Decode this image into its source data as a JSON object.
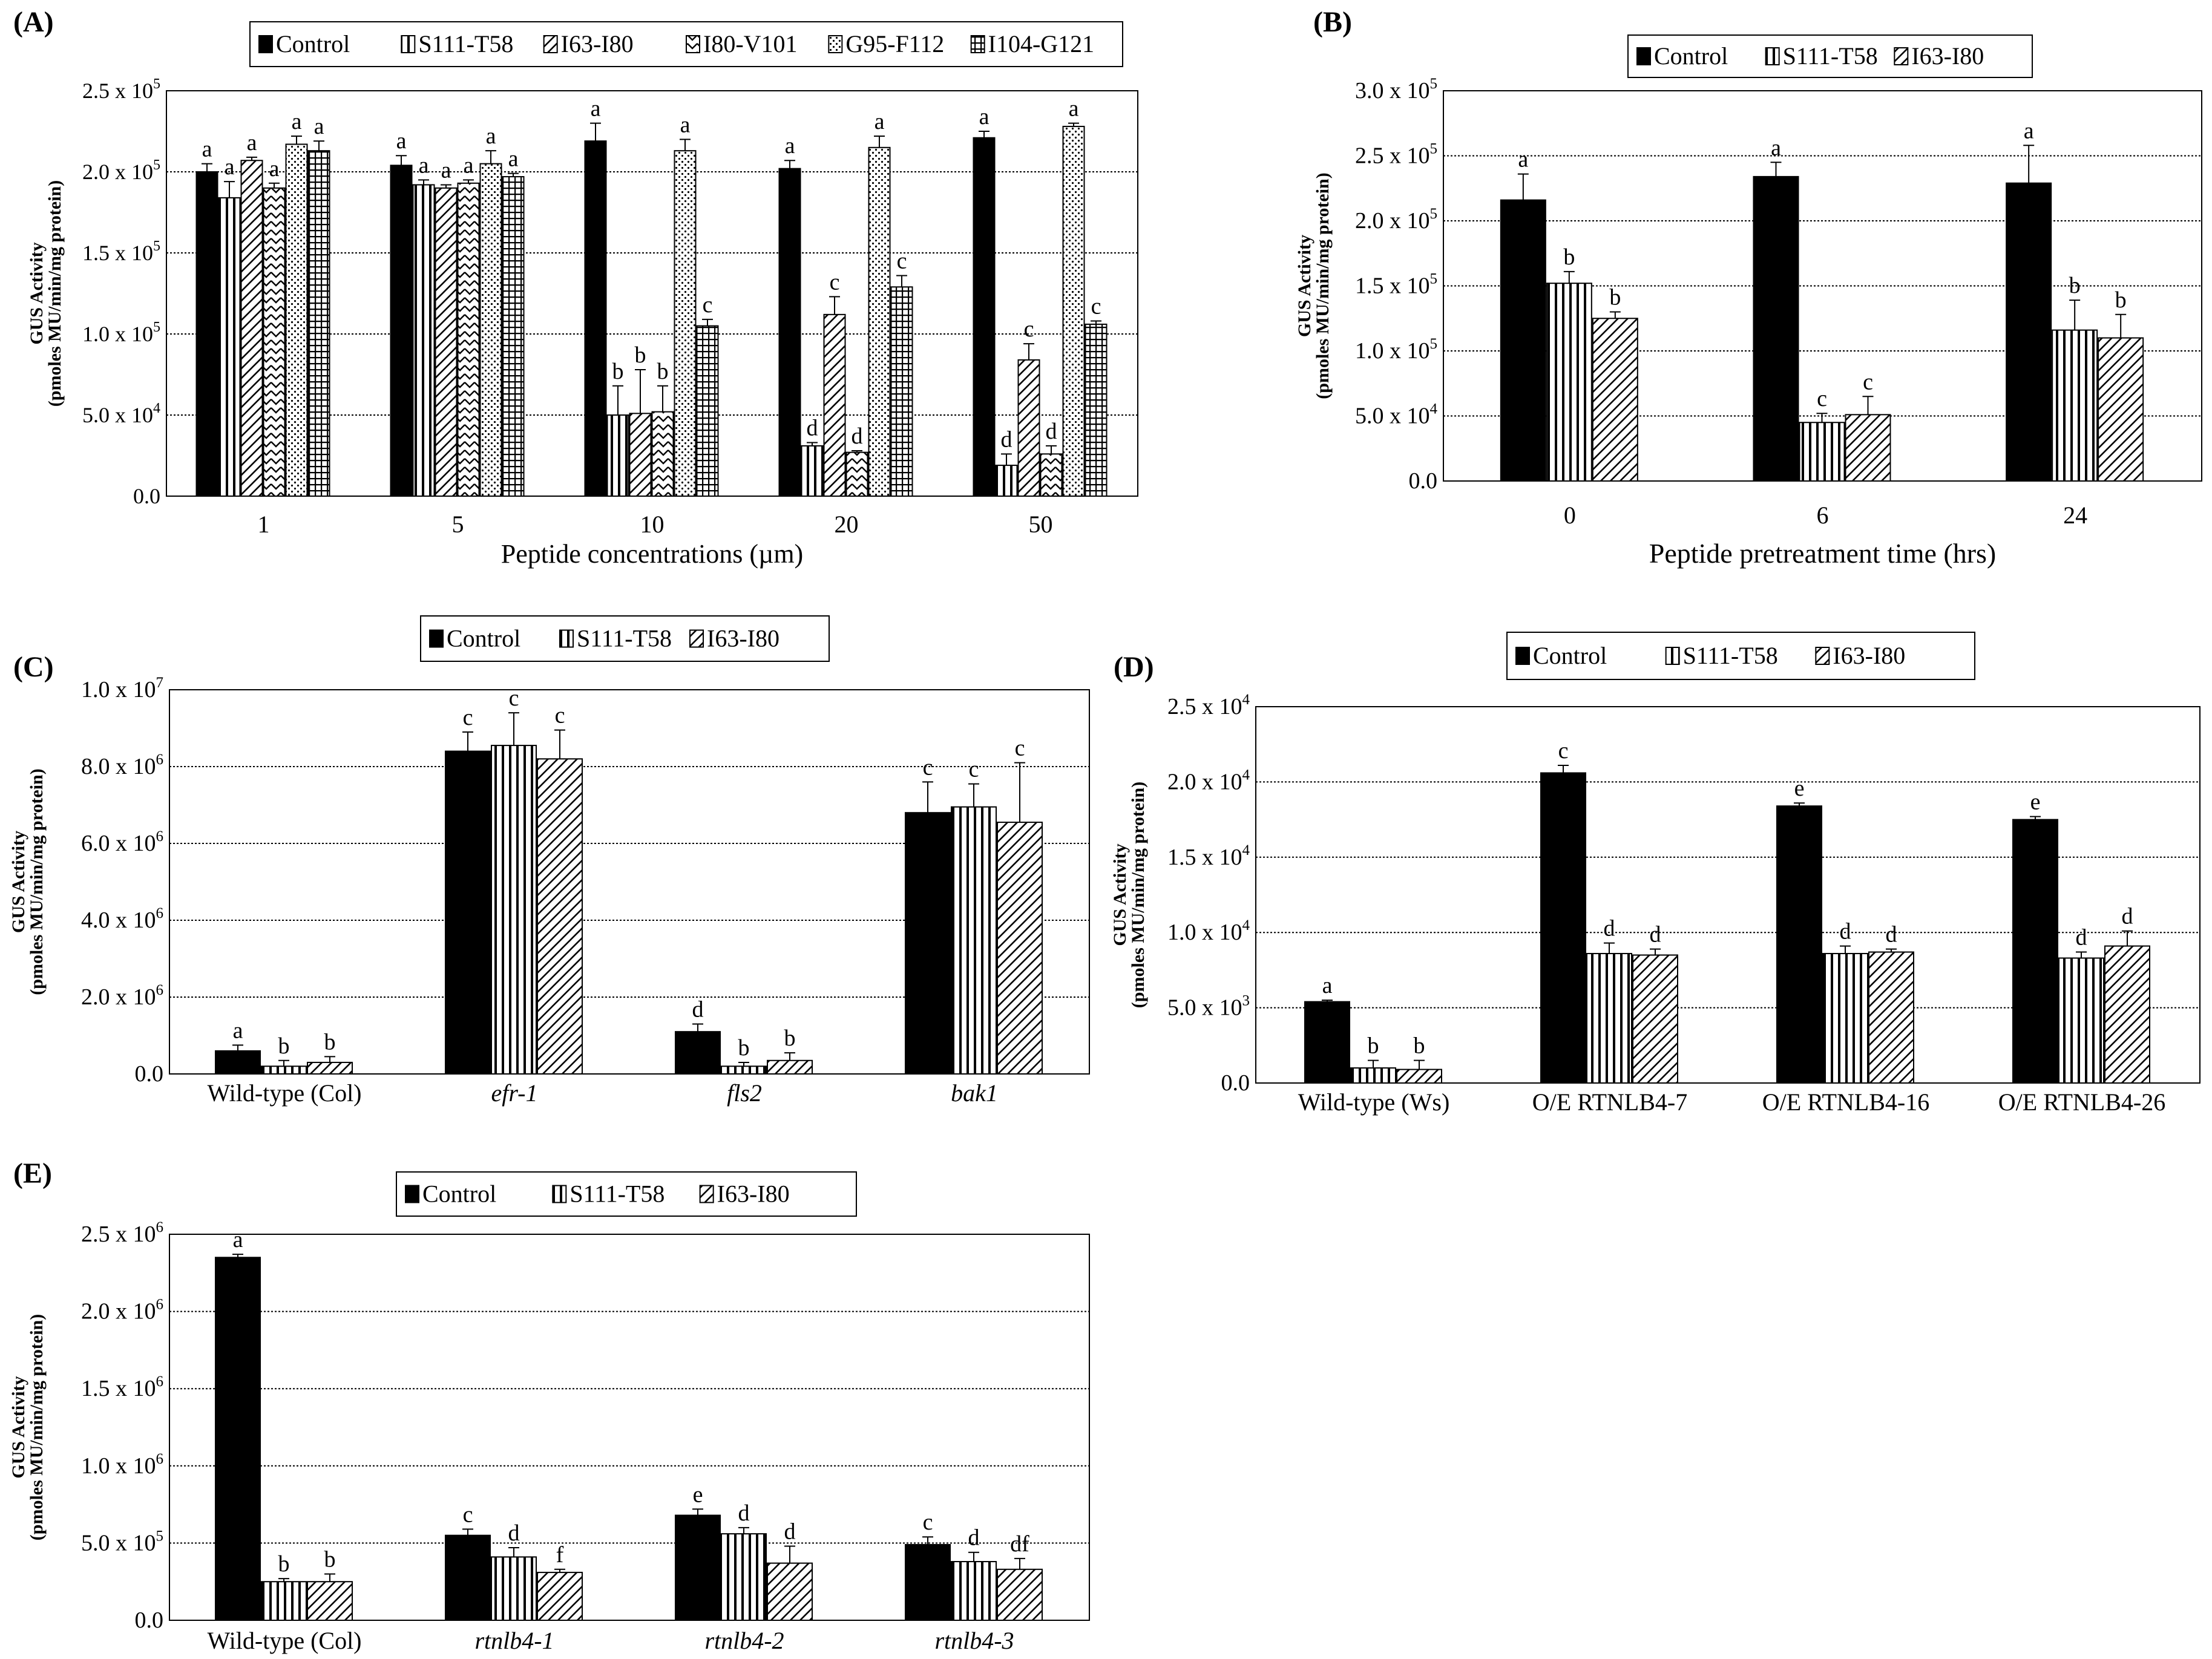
{
  "series_styles": [
    {
      "name": "Control",
      "fill": "solid-black"
    },
    {
      "name": "S111-T58",
      "fill": "vertical-stripes"
    },
    {
      "name": "I63-I80",
      "fill": "diagonal-hatch"
    },
    {
      "name": "I80-V101",
      "fill": "zigzag"
    },
    {
      "name": "G95-F112",
      "fill": "dotted"
    },
    {
      "name": "I104-G121",
      "fill": "grid"
    }
  ],
  "chart_data": [
    {
      "panel": "(A)",
      "type": "bar",
      "ylabel_line1": "GUS Activity",
      "ylabel_line2": "(pmoles MU/min/mg protein)",
      "xlabel": "Peptide concentrations (µm)",
      "ylim": [
        0,
        250000
      ],
      "yticks": [
        {
          "value": 0,
          "mant": "0.0",
          "exp": ""
        },
        {
          "value": 50000,
          "mant": "5.0 x 10",
          "exp": "4"
        },
        {
          "value": 100000,
          "mant": "1.0 x 10",
          "exp": "5"
        },
        {
          "value": 150000,
          "mant": "1.5 x 10",
          "exp": "5"
        },
        {
          "value": 200000,
          "mant": "2.0 x 10",
          "exp": "5"
        },
        {
          "value": 250000,
          "mant": "2.5 x 10",
          "exp": "5"
        }
      ],
      "categories": [
        "1",
        "5",
        "10",
        "20",
        "50"
      ],
      "category_italic": false,
      "series": [
        {
          "name": "Control",
          "values": [
            200000,
            204000,
            219000,
            202000,
            221000
          ],
          "errors": [
            5000,
            6000,
            11000,
            5000,
            4000
          ],
          "letters": [
            "a",
            "a",
            "a",
            "a",
            "a"
          ]
        },
        {
          "name": "S111-T58",
          "values": [
            184000,
            192000,
            50000,
            31000,
            19000
          ],
          "errors": [
            10000,
            3000,
            18000,
            2000,
            7000
          ],
          "letters": [
            "a",
            "a",
            "b",
            "d",
            "d"
          ]
        },
        {
          "name": "I63-I80",
          "values": [
            207000,
            190000,
            51000,
            112000,
            84000
          ],
          "errors": [
            2000,
            2000,
            27000,
            11000,
            10000
          ],
          "letters": [
            "a",
            "a",
            "b",
            "c",
            "c"
          ]
        },
        {
          "name": "I80-V101",
          "values": [
            190000,
            193000,
            52000,
            27000,
            26000
          ],
          "errors": [
            3000,
            2000,
            16000,
            1000,
            5000
          ],
          "letters": [
            "a",
            "a",
            "b",
            "d",
            "d"
          ]
        },
        {
          "name": "G95-F112",
          "values": [
            217000,
            205000,
            213000,
            215000,
            228000
          ],
          "errors": [
            5000,
            8000,
            7000,
            7000,
            2000
          ],
          "letters": [
            "a",
            "a",
            "a",
            "a",
            "a"
          ]
        },
        {
          "name": "I104-G121",
          "values": [
            213000,
            197000,
            105000,
            129000,
            106000
          ],
          "errors": [
            6000,
            2000,
            4000,
            7000,
            2000
          ],
          "letters": [
            "a",
            "a",
            "c",
            "c",
            "c"
          ]
        }
      ]
    },
    {
      "panel": "(B)",
      "type": "bar",
      "ylabel_line1": "GUS Activity",
      "ylabel_line2": "(pmoles MU/min/mg protein)",
      "xlabel": "Peptide pretreatment time (hrs)",
      "ylim": [
        0,
        300000
      ],
      "yticks": [
        {
          "value": 0,
          "mant": "0.0",
          "exp": ""
        },
        {
          "value": 50000,
          "mant": "5.0 x 10",
          "exp": "4"
        },
        {
          "value": 100000,
          "mant": "1.0 x 10",
          "exp": "5"
        },
        {
          "value": 150000,
          "mant": "1.5 x 10",
          "exp": "5"
        },
        {
          "value": 200000,
          "mant": "2.0 x 10",
          "exp": "5"
        },
        {
          "value": 250000,
          "mant": "2.5 x 10",
          "exp": "5"
        },
        {
          "value": 300000,
          "mant": "3.0 x 10",
          "exp": "5"
        }
      ],
      "categories": [
        "0",
        "6",
        "24"
      ],
      "category_italic": false,
      "series": [
        {
          "name": "Control",
          "values": [
            216000,
            234000,
            229000
          ],
          "errors": [
            20000,
            11000,
            29000
          ],
          "letters": [
            "a",
            "a",
            "a"
          ]
        },
        {
          "name": "S111-T58",
          "values": [
            152000,
            45000,
            116000
          ],
          "errors": [
            9000,
            7000,
            23000
          ],
          "letters": [
            "b",
            "c",
            "b"
          ]
        },
        {
          "name": "I63-I80",
          "values": [
            125000,
            51000,
            110000
          ],
          "errors": [
            5000,
            14000,
            18000
          ],
          "letters": [
            "b",
            "c",
            "b"
          ]
        }
      ]
    },
    {
      "panel": "(C)",
      "type": "bar",
      "ylabel_line1": "GUS Activity",
      "ylabel_line2": "(pmoles MU/min/mg protein)",
      "xlabel": "",
      "ylim": [
        0,
        10000000
      ],
      "yticks": [
        {
          "value": 0,
          "mant": "0.0",
          "exp": ""
        },
        {
          "value": 2000000,
          "mant": "2.0 x 10",
          "exp": "6"
        },
        {
          "value": 4000000,
          "mant": "4.0 x 10",
          "exp": "6"
        },
        {
          "value": 6000000,
          "mant": "6.0 x 10",
          "exp": "6"
        },
        {
          "value": 8000000,
          "mant": "8.0 x 10",
          "exp": "6"
        },
        {
          "value": 10000000,
          "mant": "1.0 x 10",
          "exp": "7"
        }
      ],
      "categories": [
        "Wild-type (Col)",
        "efr-1",
        "fls2",
        "bak1"
      ],
      "category_italic": [
        false,
        true,
        true,
        true
      ],
      "series": [
        {
          "name": "Control",
          "values": [
            600000,
            8400000,
            1100000,
            6800000
          ],
          "errors": [
            150000,
            500000,
            200000,
            800000
          ],
          "letters": [
            "a",
            "c",
            "d",
            "c"
          ]
        },
        {
          "name": "S111-T58",
          "values": [
            200000,
            8550000,
            200000,
            6950000
          ],
          "errors": [
            150000,
            850000,
            100000,
            600000
          ],
          "letters": [
            "b",
            "c",
            "b",
            "c"
          ]
        },
        {
          "name": "I63-I80",
          "values": [
            300000,
            8200000,
            350000,
            6550000
          ],
          "errors": [
            150000,
            750000,
            200000,
            1550000
          ],
          "letters": [
            "b",
            "c",
            "b",
            "c"
          ]
        }
      ]
    },
    {
      "panel": "(D)",
      "type": "bar",
      "ylabel_line1": "GUS Activity",
      "ylabel_line2": "(pmoles MU/min/mg protein)",
      "xlabel": "",
      "ylim": [
        0,
        25000
      ],
      "yticks": [
        {
          "value": 0,
          "mant": "0.0",
          "exp": ""
        },
        {
          "value": 5000,
          "mant": "5.0 x 10",
          "exp": "3"
        },
        {
          "value": 10000,
          "mant": "1.0 x 10",
          "exp": "4"
        },
        {
          "value": 15000,
          "mant": "1.5 x 10",
          "exp": "4"
        },
        {
          "value": 20000,
          "mant": "2.0 x 10",
          "exp": "4"
        },
        {
          "value": 25000,
          "mant": "2.5 x 10",
          "exp": "4"
        }
      ],
      "categories": [
        "Wild-type (Ws)",
        "O/E RTNLB4-7",
        "O/E RTNLB4-16",
        "O/E RTNLB4-26"
      ],
      "category_italic": false,
      "series": [
        {
          "name": "Control",
          "values": [
            5400,
            20600,
            18400,
            17500
          ],
          "errors": [
            100,
            500,
            200,
            200
          ],
          "letters": [
            "a",
            "c",
            "e",
            "e"
          ]
        },
        {
          "name": "S111-T58",
          "values": [
            1000,
            8600,
            8600,
            8300
          ],
          "errors": [
            500,
            700,
            500,
            400
          ],
          "letters": [
            "b",
            "d",
            "d",
            "d"
          ]
        },
        {
          "name": "I63-I80",
          "values": [
            900,
            8500,
            8700,
            9100
          ],
          "errors": [
            600,
            400,
            200,
            1000
          ],
          "letters": [
            "b",
            "d",
            "d",
            "d"
          ]
        }
      ]
    },
    {
      "panel": "(E)",
      "type": "bar",
      "ylabel_line1": "GUS Activity",
      "ylabel_line2": "(pmoles MU/min/mg protein)",
      "xlabel": "",
      "ylim": [
        0,
        2500000
      ],
      "yticks": [
        {
          "value": 0,
          "mant": "0.0",
          "exp": ""
        },
        {
          "value": 500000,
          "mant": "5.0 x 10",
          "exp": "5"
        },
        {
          "value": 1000000,
          "mant": "1.0 x 10",
          "exp": "6"
        },
        {
          "value": 1500000,
          "mant": "1.5 x 10",
          "exp": "6"
        },
        {
          "value": 2000000,
          "mant": "2.0 x 10",
          "exp": "6"
        },
        {
          "value": 2500000,
          "mant": "2.5 x 10",
          "exp": "6"
        }
      ],
      "categories": [
        "Wild-type (Col)",
        "rtnlb4-1",
        "rtnlb4-2",
        "rtnlb4-3"
      ],
      "category_italic": [
        false,
        true,
        true,
        true
      ],
      "series": [
        {
          "name": "Control",
          "values": [
            2350000,
            550000,
            680000,
            490000
          ],
          "errors": [
            20000,
            40000,
            40000,
            50000
          ],
          "letters": [
            "a",
            "c",
            "e",
            "c"
          ]
        },
        {
          "name": "S111-T58",
          "values": [
            250000,
            410000,
            560000,
            380000
          ],
          "errors": [
            20000,
            60000,
            40000,
            60000
          ],
          "letters": [
            "b",
            "d",
            "d",
            "d"
          ]
        },
        {
          "name": "I63-I80",
          "values": [
            250000,
            310000,
            370000,
            330000
          ],
          "errors": [
            50000,
            20000,
            110000,
            70000
          ],
          "letters": [
            "b",
            "f",
            "d",
            "df"
          ]
        }
      ]
    }
  ]
}
